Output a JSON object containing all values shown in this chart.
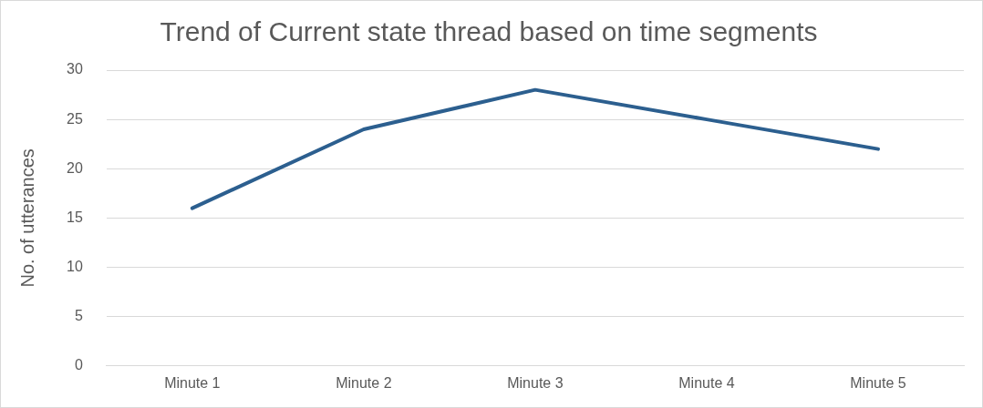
{
  "chart_data": {
    "type": "line",
    "title": "Trend of Current state thread based on time segments",
    "ylabel": "No. of utterances",
    "categories": [
      "Minute 1",
      "Minute 2",
      "Minute 3",
      "Minute 4",
      "Minute 5"
    ],
    "series": [
      {
        "color": "#2c5f8f",
        "values": [
          16,
          24,
          28,
          25,
          22
        ]
      }
    ],
    "ylim": [
      0,
      30
    ],
    "yticks": [
      0,
      5,
      10,
      15,
      20,
      25,
      30
    ],
    "grid": "y",
    "legend": false,
    "marker": "none",
    "line_style": "solid"
  }
}
